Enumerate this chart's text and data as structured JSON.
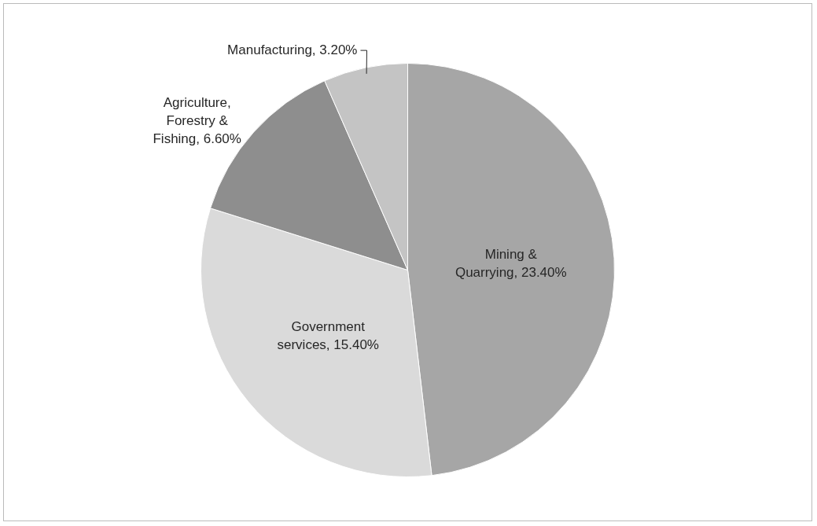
{
  "chart_data": {
    "type": "pie",
    "categories": [
      "Mining & Quarrying",
      "Government services",
      "Agriculture, Forestry & Fishing",
      "Manufacturing"
    ],
    "values": [
      23.4,
      15.4,
      6.6,
      3.2
    ],
    "value_labels": [
      "23.40%",
      "15.40%",
      "6.60%",
      "3.20%"
    ],
    "colors": [
      "#a6a6a6",
      "#dadada",
      "#8e8e8e",
      "#c4c4c4"
    ],
    "legend": false
  }
}
